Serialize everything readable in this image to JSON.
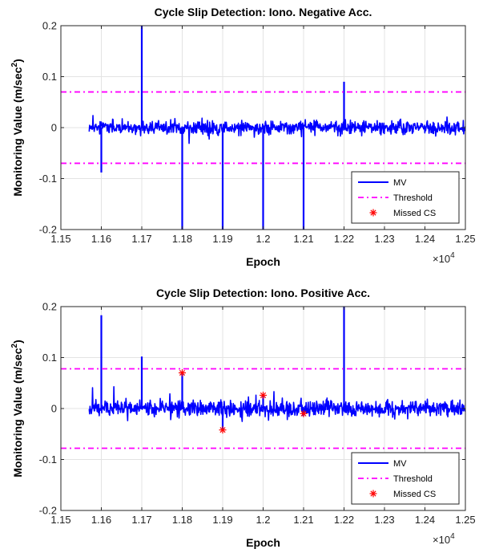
{
  "chart_data": [
    {
      "type": "line",
      "title": "Cycle Slip Detection: Iono. Negative Acc.",
      "xlabel": "Epoch",
      "ylabel_main": "Monitoring Value (m/sec",
      "ylabel_sup": "2",
      "ylabel_close": ")",
      "x_exponent_base": "×10",
      "x_exponent_power": "4",
      "xlim": [
        11500,
        12500
      ],
      "ylim": [
        -0.2,
        0.2
      ],
      "xticks": [
        11500,
        11600,
        11700,
        11800,
        11900,
        12000,
        12100,
        12200,
        12300,
        12400,
        12500
      ],
      "xtick_labels": [
        "1.15",
        "1.16",
        "1.17",
        "1.18",
        "1.19",
        "1.2",
        "1.21",
        "1.22",
        "1.23",
        "1.24",
        "1.25"
      ],
      "yticks": [
        -0.2,
        -0.1,
        0,
        0.1,
        0.2
      ],
      "ytick_labels": [
        "-0.2",
        "-0.1",
        "0",
        "0.1",
        "0.2"
      ],
      "grid": true,
      "legend_position": "lower-right",
      "legend": [
        "MV",
        "Threshold",
        "Missed CS"
      ],
      "colors": {
        "mv": "#0000ff",
        "threshold": "#ff00ff",
        "missed": "#ff0000"
      },
      "mv": {
        "x_start": 11570,
        "x_end": 12500,
        "noise_amplitude": 0.012
      },
      "spikes": [
        {
          "x": 11600,
          "y": -0.088
        },
        {
          "x": 11700,
          "y": 0.2
        },
        {
          "x": 11800,
          "y": -0.2
        },
        {
          "x": 11900,
          "y": -0.2
        },
        {
          "x": 12000,
          "y": -0.2
        },
        {
          "x": 12100,
          "y": -0.2
        },
        {
          "x": 12200,
          "y": 0.09
        }
      ],
      "threshold": [
        0.07,
        -0.07
      ],
      "missed_cs": []
    },
    {
      "type": "line",
      "title": "Cycle Slip Detection: Iono. Positive Acc.",
      "xlabel": "Epoch",
      "ylabel_main": "Monitoring Value (m/sec",
      "ylabel_sup": "2",
      "ylabel_close": ")",
      "x_exponent_base": "×10",
      "x_exponent_power": "4",
      "xlim": [
        11500,
        12500
      ],
      "ylim": [
        -0.2,
        0.2
      ],
      "xticks": [
        11500,
        11600,
        11700,
        11800,
        11900,
        12000,
        12100,
        12200,
        12300,
        12400,
        12500
      ],
      "xtick_labels": [
        "1.15",
        "1.16",
        "1.17",
        "1.18",
        "1.19",
        "1.2",
        "1.21",
        "1.22",
        "1.23",
        "1.24",
        "1.25"
      ],
      "yticks": [
        -0.2,
        -0.1,
        0,
        0.1,
        0.2
      ],
      "ytick_labels": [
        "-0.2",
        "-0.1",
        "0",
        "0.1",
        "0.2"
      ],
      "grid": true,
      "legend_position": "lower-right",
      "legend": [
        "MV",
        "Threshold",
        "Missed CS"
      ],
      "colors": {
        "mv": "#0000ff",
        "threshold": "#ff00ff",
        "missed": "#ff0000"
      },
      "mv": {
        "x_start": 11570,
        "x_end": 12500,
        "noise_amplitude": 0.014
      },
      "spikes": [
        {
          "x": 11600,
          "y": 0.183
        },
        {
          "x": 11700,
          "y": 0.102
        },
        {
          "x": 11800,
          "y": 0.07
        },
        {
          "x": 11900,
          "y": -0.04
        },
        {
          "x": 12000,
          "y": 0.025
        },
        {
          "x": 12100,
          "y": -0.01
        },
        {
          "x": 12200,
          "y": 0.2
        }
      ],
      "threshold": [
        0.078,
        -0.078
      ],
      "missed_cs": [
        {
          "x": 11800,
          "y": 0.07
        },
        {
          "x": 11900,
          "y": -0.042
        },
        {
          "x": 12000,
          "y": 0.026
        },
        {
          "x": 12100,
          "y": -0.01
        }
      ]
    }
  ]
}
